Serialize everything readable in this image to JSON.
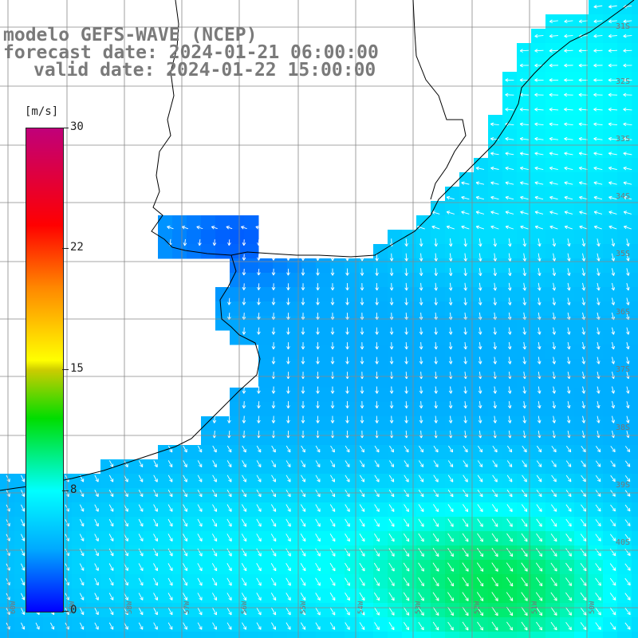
{
  "title": {
    "line1": "modelo GEFS-WAVE (NCEP)",
    "line2": "forecast date: 2024-01-21 06:00:00",
    "line3": "valid date: 2024-01-22 15:00:00"
  },
  "colorbar": {
    "unit": "[m/s]",
    "ticks": [
      "30",
      "22",
      "15",
      "8",
      "0"
    ],
    "range": [
      0,
      30
    ]
  },
  "lat_labels": [
    "31S",
    "32S",
    "33S",
    "34S",
    "35S",
    "36S",
    "37S",
    "38S",
    "39S",
    "40S"
  ],
  "lon_labels": [
    "60W",
    "59W",
    "58W",
    "57W",
    "56W",
    "55W",
    "54W",
    "53W",
    "52W",
    "51W",
    "50W"
  ],
  "colors": {
    "land": "#ffffff",
    "grid": "#888888",
    "coast": "#000000",
    "title": "#7a7a7a"
  }
}
